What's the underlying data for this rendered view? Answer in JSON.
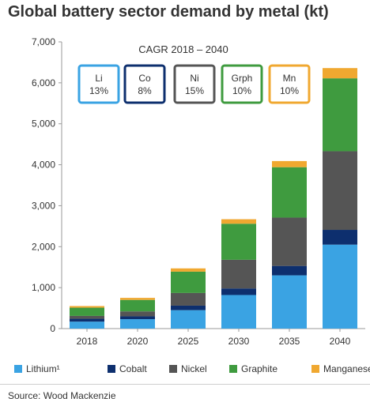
{
  "title": "Global battery sector demand by metal (kt)",
  "source": "Source: Wood Mackenzie",
  "cagr": {
    "title": "CAGR 2018 – 2040",
    "boxes": [
      {
        "symbol": "Li",
        "value": "13%",
        "color": "#3aa3e3"
      },
      {
        "symbol": "Co",
        "value": "8%",
        "color": "#0d2f6e"
      },
      {
        "symbol": "Ni",
        "value": "15%",
        "color": "#555555"
      },
      {
        "symbol": "Grph",
        "value": "10%",
        "color": "#3f9b3f"
      },
      {
        "symbol": "Mn",
        "value": "10%",
        "color": "#f0a830"
      }
    ]
  },
  "chart_data": {
    "type": "bar",
    "stacked": true,
    "categories": [
      "2018",
      "2020",
      "2025",
      "2030",
      "2035",
      "2040"
    ],
    "ylim": [
      0,
      7000
    ],
    "yticks": [
      "0",
      "1,000",
      "2,000",
      "3,000",
      "4,000",
      "5,000",
      "6,000",
      "7,000"
    ],
    "grid": false,
    "legend_position": "bottom",
    "series": [
      {
        "name": "Lithium¹",
        "color": "#3aa3e3",
        "values": [
          170,
          230,
          450,
          820,
          1300,
          2050
        ]
      },
      {
        "name": "Cobalt",
        "color": "#0d2f6e",
        "values": [
          70,
          70,
          110,
          160,
          230,
          360
        ]
      },
      {
        "name": "Nickel",
        "color": "#555555",
        "values": [
          70,
          120,
          310,
          700,
          1180,
          1920
        ]
      },
      {
        "name": "Graphite",
        "color": "#3f9b3f",
        "values": [
          200,
          280,
          520,
          880,
          1230,
          1780
        ]
      },
      {
        "name": "Manganese",
        "color": "#f0a830",
        "values": [
          40,
          50,
          80,
          110,
          150,
          250
        ]
      }
    ]
  }
}
